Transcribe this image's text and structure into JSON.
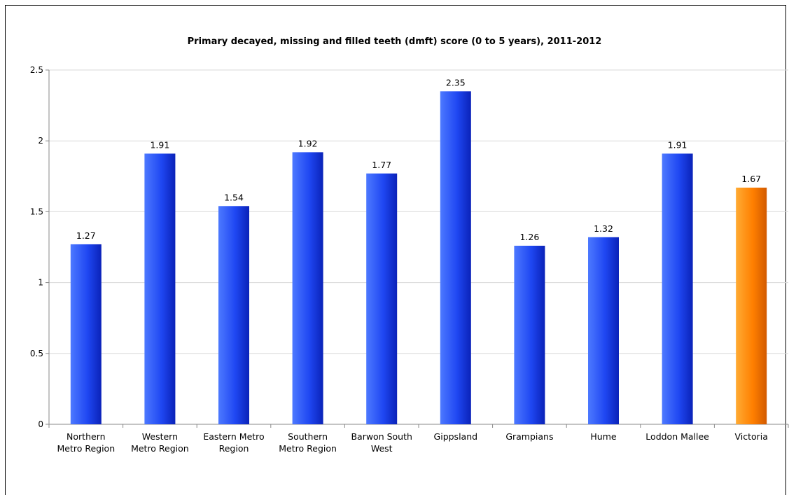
{
  "chart_data": {
    "type": "bar",
    "title": "Primary decayed, missing and filled teeth (dmft) score (0 to 5 years), 2011-2012",
    "xlabel": "",
    "ylabel": "",
    "ylim": [
      0,
      2.5
    ],
    "yticks": [
      "0",
      "0.5",
      "1",
      "1.5",
      "2",
      "2.5"
    ],
    "grid": true,
    "categories": [
      [
        "Northern",
        "Metro Region"
      ],
      [
        "Western",
        "Metro Region"
      ],
      [
        "Eastern Metro",
        "Region"
      ],
      [
        "Southern",
        "Metro Region"
      ],
      [
        "Barwon South",
        "West"
      ],
      [
        "Gippsland"
      ],
      [
        "Grampians"
      ],
      [
        "Hume"
      ],
      [
        "Loddon Mallee"
      ],
      [
        "Victoria"
      ]
    ],
    "values": [
      1.27,
      1.91,
      1.54,
      1.92,
      1.77,
      2.35,
      1.26,
      1.32,
      1.91,
      1.67
    ],
    "value_labels": [
      "1.27",
      "1.91",
      "1.54",
      "1.92",
      "1.77",
      "2.35",
      "1.26",
      "1.32",
      "1.91",
      "1.67"
    ],
    "colors": {
      "bar_light": "#4d79ff",
      "bar_mid": "#1f47f2",
      "bar_dark": "#0a22b8",
      "highlight_light": "#ffab33",
      "highlight_mid": "#ff7f00",
      "highlight_dark": "#d25a00",
      "highlight_index": 9,
      "grid": "#d9d9d9"
    }
  }
}
